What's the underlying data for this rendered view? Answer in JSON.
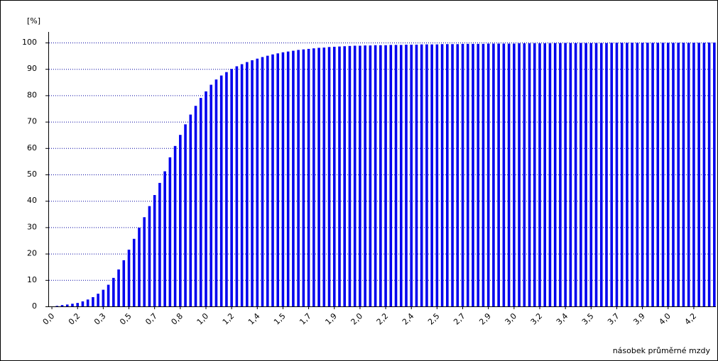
{
  "chart_data": {
    "type": "bar",
    "y_label": "[%]",
    "x_label": "násobek průměrné mzdy",
    "color": "#0000ee",
    "grid": true,
    "ylim": [
      0,
      100
    ],
    "yticks": [
      0,
      10,
      20,
      30,
      40,
      50,
      60,
      70,
      80,
      90,
      100
    ],
    "categories": [
      "0,0",
      null,
      null,
      null,
      null,
      "0,2",
      null,
      null,
      null,
      null,
      "0,3",
      null,
      null,
      null,
      null,
      "0,5",
      null,
      null,
      null,
      null,
      "0,7",
      null,
      null,
      null,
      null,
      "0,8",
      null,
      null,
      null,
      null,
      "1,0",
      null,
      null,
      null,
      null,
      "1,2",
      null,
      null,
      null,
      null,
      "1,4",
      null,
      null,
      null,
      null,
      "1,5",
      null,
      null,
      null,
      null,
      "1,7",
      null,
      null,
      null,
      null,
      "1,9",
      null,
      null,
      null,
      null,
      "2,0",
      null,
      null,
      null,
      null,
      "2,2",
      null,
      null,
      null,
      null,
      "2,4",
      null,
      null,
      null,
      null,
      "2,5",
      null,
      null,
      null,
      null,
      "2,7",
      null,
      null,
      null,
      null,
      "2,9",
      null,
      null,
      null,
      null,
      "3,0",
      null,
      null,
      null,
      null,
      "3,2",
      null,
      null,
      null,
      null,
      "3,4",
      null,
      null,
      null,
      null,
      "3,5",
      null,
      null,
      null,
      null,
      "3,7",
      null,
      null,
      null,
      null,
      "3,9",
      null,
      null,
      null,
      null,
      "4,0",
      null,
      null,
      null,
      null,
      "4,2",
      null,
      null,
      null,
      null
    ],
    "values": [
      0,
      0.2,
      0.5,
      0.7,
      1,
      1.3,
      1.9,
      2.6,
      3.5,
      4.8,
      6.3,
      8.2,
      10.8,
      14,
      17.5,
      21.5,
      25.6,
      29.8,
      33.8,
      38,
      42.2,
      46.8,
      51.2,
      56.5,
      60.8,
      65,
      69,
      72.7,
      76,
      79,
      81.5,
      84,
      86,
      87.5,
      88.8,
      90,
      91,
      91.8,
      92.6,
      93.3,
      93.9,
      94.5,
      95,
      95.5,
      95.9,
      96.3,
      96.6,
      96.9,
      97.2,
      97.4,
      97.6,
      97.8,
      98,
      98.1,
      98.3,
      98.4,
      98.5,
      98.6,
      98.7,
      98.8,
      98.8,
      98.9,
      98.9,
      99.0,
      99.0,
      99.0,
      99.1,
      99.1,
      99.1,
      99.2,
      99.2,
      99.2,
      99.3,
      99.3,
      99.3,
      99.3,
      99.4,
      99.4,
      99.4,
      99.4,
      99.5,
      99.5,
      99.5,
      99.5,
      99.5,
      99.6,
      99.6,
      99.6,
      99.6,
      99.6,
      99.6,
      99.7,
      99.7,
      99.7,
      99.7,
      99.7,
      99.7,
      99.7,
      99.8,
      99.8,
      99.8,
      99.8,
      99.8,
      99.8,
      99.8,
      99.8,
      99.8,
      99.8,
      99.8,
      99.9,
      99.9,
      99.9,
      99.9,
      99.9,
      99.9,
      99.9,
      99.9,
      99.9,
      99.9,
      99.9,
      99.9,
      99.9,
      99.9,
      99.9,
      99.9,
      99.9,
      99.9,
      99.9,
      100,
      100
    ]
  }
}
